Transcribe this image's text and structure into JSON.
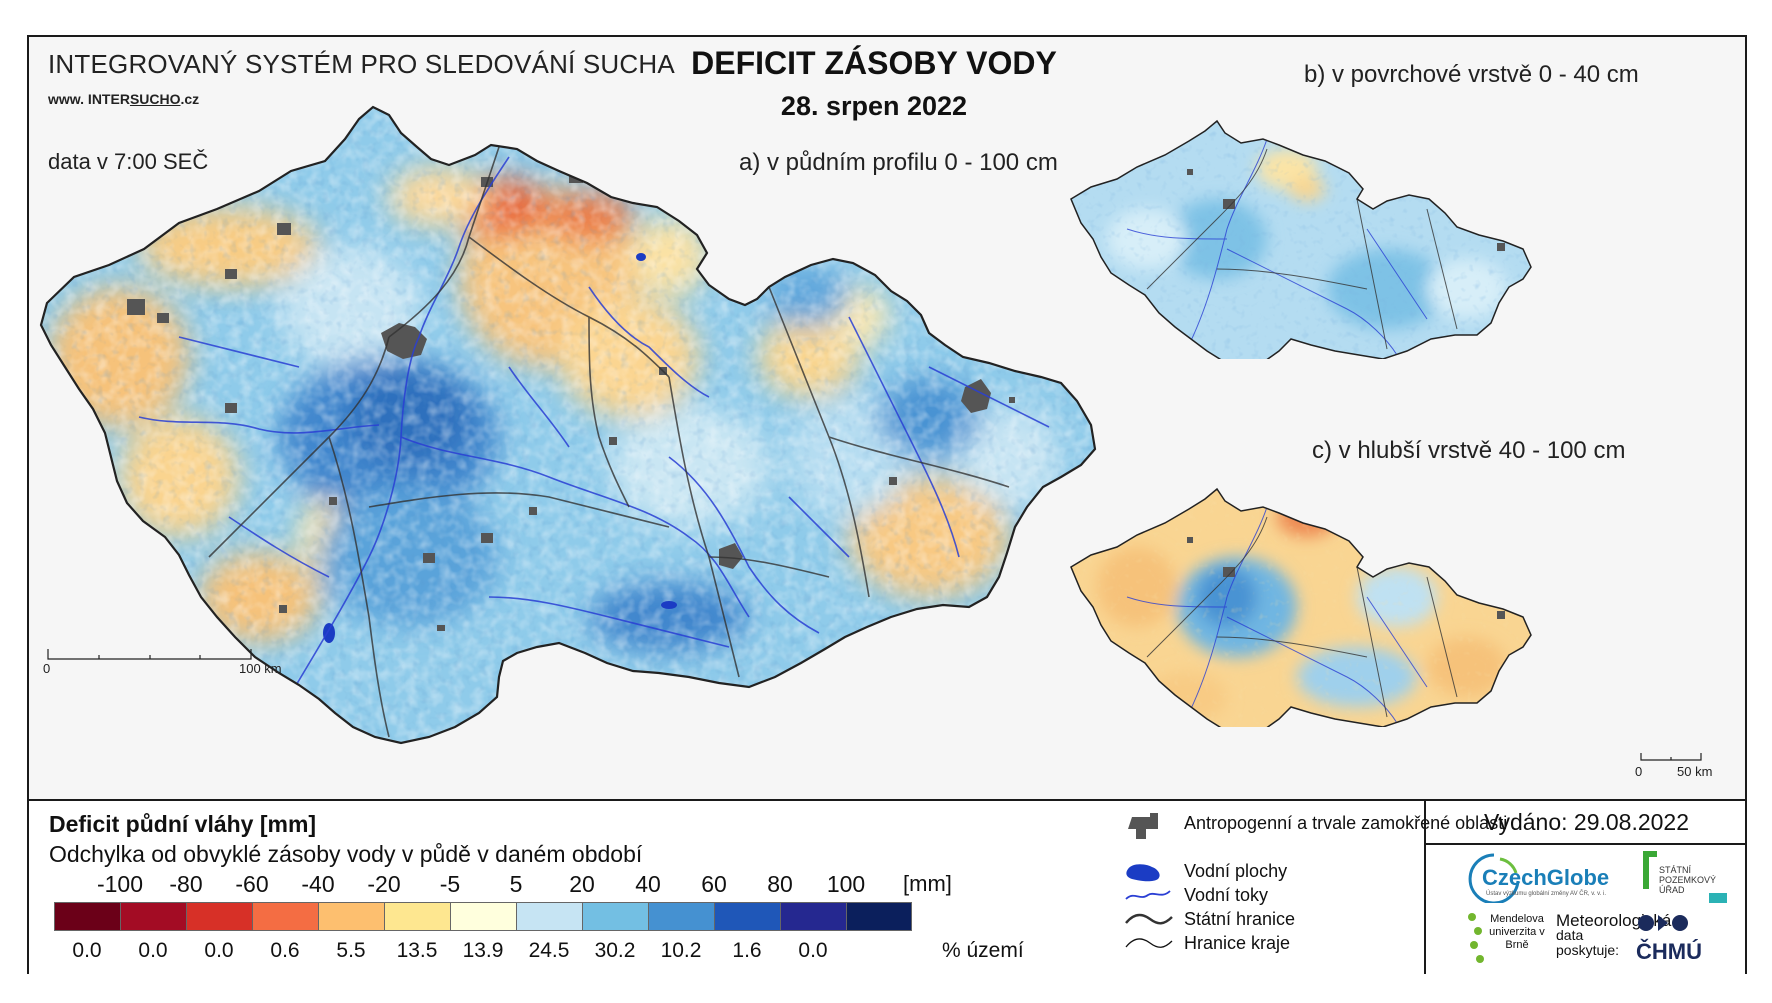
{
  "header": {
    "system_name": "INTEGROVANÝ SYSTÉM PRO SLEDOVÁNÍ SUCHA",
    "website_prefix": "www. INTER",
    "website_underlined": "SUCHO",
    "website_suffix": ".cz",
    "data_time": "data v 7:00 SEČ",
    "title": "DEFICIT ZÁSOBY VODY",
    "date": "28. srpen 2022"
  },
  "maps": {
    "a_label": "a) v půdním profilu 0 - 100 cm",
    "b_label": "b) v povrchové vrstvě 0 - 40 cm",
    "c_label": "c) v hlubší vrstvě 40 - 100 cm",
    "scale_main": {
      "start": "0",
      "end": "100 km"
    },
    "scale_small": {
      "start": "0",
      "end": "50 km"
    }
  },
  "legend": {
    "title": "Deficit půdní vláhy  [mm]",
    "subtitle": "Odchylka od obvyklé zásoby vody v půdě v daném období",
    "unit": "[mm]",
    "percent_unit": "% území",
    "ticks": [
      "-100",
      "-80",
      "-60",
      "-40",
      "-20",
      "-5",
      "5",
      "20",
      "40",
      "60",
      "80",
      "100"
    ],
    "colors": [
      "#6b0018",
      "#a30c24",
      "#d73027",
      "#f46d43",
      "#fdbf6f",
      "#fee790",
      "#ffffdd",
      "#c6e4f3",
      "#73bfe3",
      "#4591d1",
      "#1f57b8",
      "#252890",
      "#0b1f5c"
    ],
    "percentages": [
      "0.0",
      "0.0",
      "0.0",
      "0.6",
      "5.5",
      "13.5",
      "13.9",
      "24.5",
      "30.2",
      "10.2",
      "1.6",
      "0.0"
    ]
  },
  "symbols": [
    {
      "icon": "urban-area-icon",
      "label": "Antropogenní a trvale zamokřené oblasti"
    },
    {
      "icon": "water-body-icon",
      "label": "Vodní plochy"
    },
    {
      "icon": "river-icon",
      "label": "Vodní toky"
    },
    {
      "icon": "state-border-icon",
      "label": "Státní hranice"
    },
    {
      "icon": "region-border-icon",
      "label": "Hranice kraje"
    }
  ],
  "issue": {
    "issued": "Vydáno: 29.08.2022",
    "czechglobe": "CzechGlobe",
    "czechglobe_sub": "Ústav výzkumu globální změny AV ČR, v. v. i.",
    "spu": "STÁTNÍ POZEMKOVÝ ÚŘAD",
    "mendel": "Mendelova univerzita v Brně",
    "meteo_line1": "Meteorologická",
    "meteo_line2": "data",
    "meteo_line3": "poskytuje:",
    "chmu": "ČHMÚ"
  }
}
